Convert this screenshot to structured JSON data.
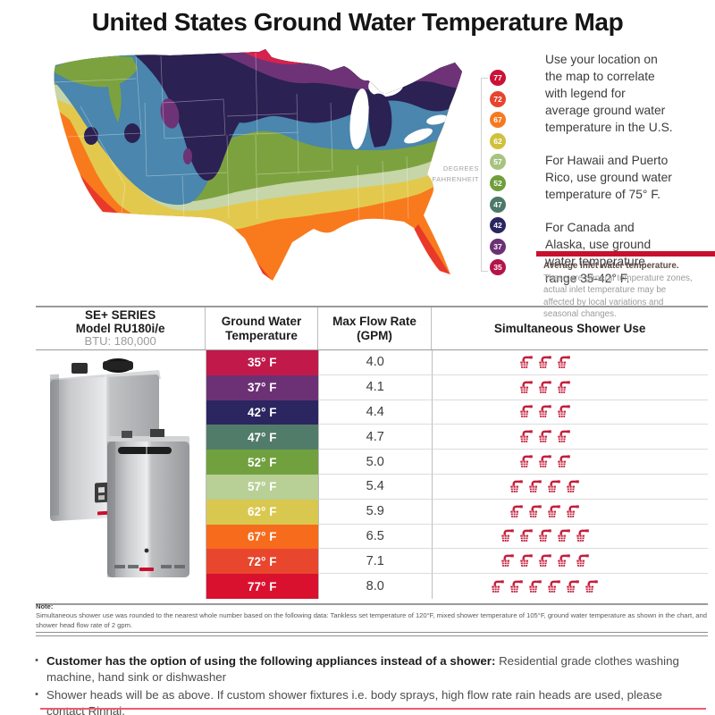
{
  "title": "United States Ground Water Temperature Map",
  "map": {
    "degrees_label": "DEGREES\nFAHRENHEIT",
    "legend": [
      {
        "value": "77",
        "color": "#cb1237"
      },
      {
        "value": "72",
        "color": "#e8432f"
      },
      {
        "value": "67",
        "color": "#f47a22"
      },
      {
        "value": "62",
        "color": "#cfc13d"
      },
      {
        "value": "57",
        "color": "#a7c380"
      },
      {
        "value": "52",
        "color": "#6f9e3c"
      },
      {
        "value": "47",
        "color": "#4c7a68"
      },
      {
        "value": "42",
        "color": "#2b2560"
      },
      {
        "value": "37",
        "color": "#6c3175"
      },
      {
        "value": "35",
        "color": "#b5134a"
      }
    ],
    "band_colors": {
      "crimson": "#d6224c",
      "purple": "#6e3377",
      "navy": "#2b2153",
      "blue": "#4a86ad",
      "green": "#7ca23f",
      "sage": "#c6d6a8",
      "yellow": "#e2c94d",
      "orange": "#f87a1d",
      "red": "#e8392b"
    }
  },
  "info": {
    "paragraphs": [
      "Use your location on\nthe map to correlate\nwith legend for\naverage ground water\ntemperature in the U.S.",
      "For Hawaii and Puerto\nRico, use ground water\ntemperature of 75° F.",
      "For Canada and\nAlaska, use ground\nwater temperature\nrange 35-42° F."
    ],
    "callout": {
      "bar_color": "#c8102e",
      "title": "Average inlet water temperature.",
      "body": "These are general temperature zones,\nactual inlet temperature may be\naffected by local variations and\nseasonal changes."
    }
  },
  "table": {
    "product": {
      "line1": "SE+ SERIES",
      "line2": "Model RU180i/e",
      "line3": "BTU: 180,000"
    },
    "headers": {
      "temp": "Ground Water\nTemperature",
      "flow": "Max Flow Rate\n(GPM)",
      "shower": "Simultaneous Shower Use"
    },
    "rows": [
      {
        "temp": "35° F",
        "color": "#c2194b",
        "flow": "4.0",
        "showers": 3
      },
      {
        "temp": "37° F",
        "color": "#6c3175",
        "flow": "4.1",
        "showers": 3
      },
      {
        "temp": "42° F",
        "color": "#2b2560",
        "flow": "4.4",
        "showers": 3
      },
      {
        "temp": "47° F",
        "color": "#527c6a",
        "flow": "4.7",
        "showers": 3
      },
      {
        "temp": "52° F",
        "color": "#71a03e",
        "flow": "5.0",
        "showers": 3
      },
      {
        "temp": "57° F",
        "color": "#b8cf96",
        "flow": "5.4",
        "showers": 4
      },
      {
        "temp": "62° F",
        "color": "#d9c84f",
        "flow": "5.9",
        "showers": 4
      },
      {
        "temp": "67° F",
        "color": "#f76b1c",
        "flow": "6.5",
        "showers": 5
      },
      {
        "temp": "72° F",
        "color": "#e8472e",
        "flow": "7.1",
        "showers": 5
      },
      {
        "temp": "77° F",
        "color": "#d9112f",
        "flow": "8.0",
        "showers": 6
      }
    ]
  },
  "shower_icon_color": "#c41e3a",
  "note": {
    "label": "Note:",
    "text": "Simultaneous shower use was rounded to the nearest whole number based on the following data: Tankless set temperature of 120°F, mixed shower temperature of 105°F, ground water temperature as shown in the chart, and shower head flow rate of 2 gpm."
  },
  "bullets": [
    {
      "bold": "Customer has the option of using the following appliances instead of a shower:",
      "text": " Residential grade clothes washing machine, hand sink or dishwasher"
    },
    {
      "bold": "",
      "text": "Shower heads will be as above. If custom shower fixtures  i.e. body sprays, high flow rate rain heads are used, please contact Rinnai."
    }
  ],
  "footer_rule_color": "#ef5b6b"
}
